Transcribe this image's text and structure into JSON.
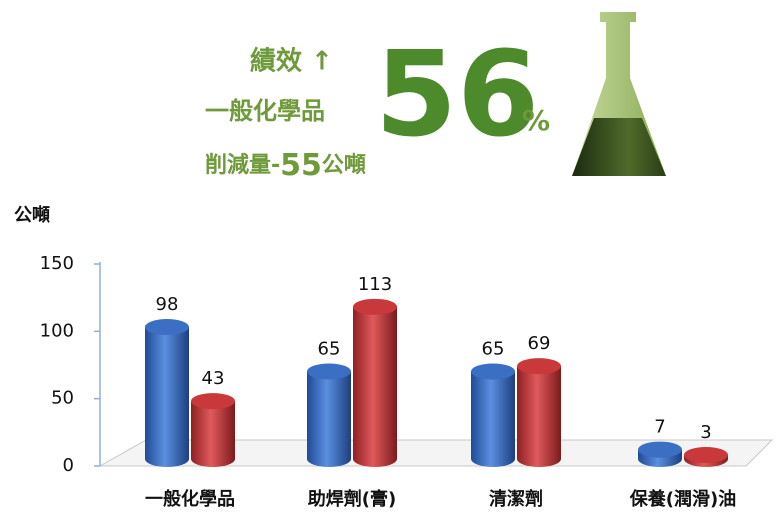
{
  "header": {
    "line1": "績效 ↑",
    "line2": "一般化學品",
    "big_number": "56",
    "percent": "%",
    "line3_prefix": "削減量-",
    "line3_number": "55",
    "line3_unit": "公噸"
  },
  "chart_data": {
    "type": "bar",
    "y_label": "公噸",
    "categories": [
      "一般化學品",
      "助焊劑(膏)",
      "清潔劑",
      "保養(潤滑)油"
    ],
    "series": [
      {
        "color": "#3a6fc4",
        "values": [
          98,
          65,
          65,
          7
        ]
      },
      {
        "color": "#c9383a",
        "values": [
          43,
          113,
          69,
          3
        ]
      }
    ],
    "ylim": [
      0,
      150
    ],
    "yticks": [
      0,
      50,
      100,
      150
    ],
    "grid": false
  }
}
